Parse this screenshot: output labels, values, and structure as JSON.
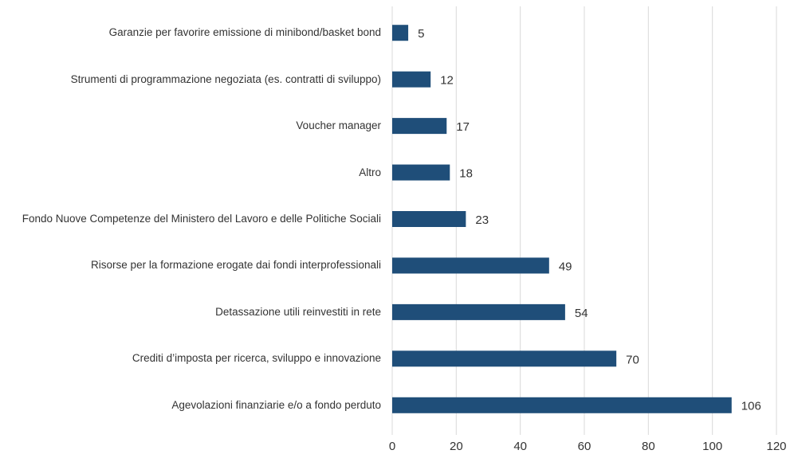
{
  "chart_data": {
    "type": "bar",
    "orientation": "horizontal",
    "categories": [
      "Garanzie per favorire emissione di minibond/basket bond",
      "Strumenti di programmazione negoziata (es. contratti di sviluppo)",
      "Voucher manager",
      "Altro",
      "Fondo Nuove Competenze del Ministero del Lavoro e delle Politiche Sociali",
      "Risorse per la formazione erogate dai fondi interprofessionali",
      "Detassazione utili reinvestiti in rete",
      "Crediti d’imposta per ricerca, sviluppo e innovazione",
      "Agevolazioni finanziarie e/o a fondo perduto"
    ],
    "values": [
      5,
      12,
      17,
      18,
      23,
      49,
      54,
      70,
      106
    ],
    "color": "#1f4e79",
    "xlim": [
      0,
      120
    ],
    "xticks": [
      0,
      20,
      40,
      60,
      80,
      100,
      120
    ],
    "grid": true
  }
}
